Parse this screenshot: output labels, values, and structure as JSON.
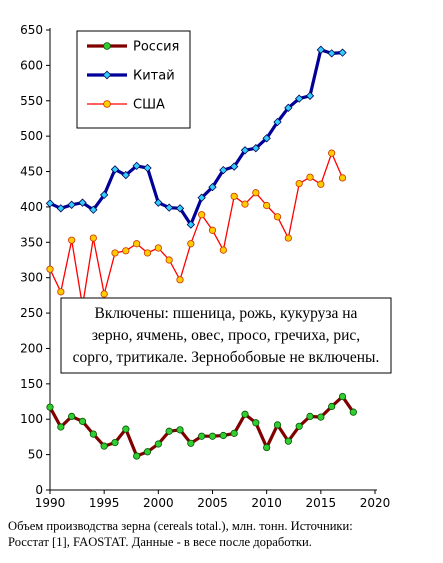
{
  "chart_data": {
    "type": "line",
    "title": "",
    "xlabel": "",
    "ylabel": "",
    "xlim": [
      1990,
      2020
    ],
    "ylim": [
      0,
      650
    ],
    "x_ticks": [
      1990,
      1995,
      2000,
      2005,
      2010,
      2015,
      2020
    ],
    "y_ticks": [
      0,
      50,
      100,
      150,
      200,
      250,
      300,
      350,
      400,
      450,
      500,
      550,
      600,
      650
    ],
    "grid": false,
    "legend_position": "top-left",
    "series": [
      {
        "name": "Россия",
        "color": "#800000",
        "marker_color": "#33cc33",
        "marker": "circle",
        "x": [
          1990,
          1991,
          1992,
          1993,
          1994,
          1995,
          1996,
          1997,
          1998,
          1999,
          2000,
          2001,
          2002,
          2003,
          2004,
          2005,
          2006,
          2007,
          2008,
          2009,
          2010,
          2011,
          2012,
          2013,
          2014,
          2015,
          2016,
          2017,
          2018
        ],
        "y": [
          117,
          89,
          104,
          97,
          79,
          62,
          67,
          86,
          48,
          54,
          65,
          83,
          85,
          66,
          76,
          76,
          77,
          80,
          107,
          95,
          60,
          92,
          69,
          90,
          104,
          103,
          118,
          132,
          110
        ]
      },
      {
        "name": "Китай",
        "color": "#000099",
        "marker_color": "#33ccff",
        "marker": "diamond",
        "x": [
          1990,
          1991,
          1992,
          1993,
          1994,
          1995,
          1996,
          1997,
          1998,
          1999,
          2000,
          2001,
          2002,
          2003,
          2004,
          2005,
          2006,
          2007,
          2008,
          2009,
          2010,
          2011,
          2012,
          2013,
          2014,
          2015,
          2016,
          2017
        ],
        "y": [
          405,
          398,
          403,
          406,
          396,
          417,
          453,
          445,
          458,
          455,
          406,
          399,
          398,
          375,
          413,
          428,
          452,
          457,
          480,
          483,
          497,
          520,
          540,
          553,
          557,
          622,
          617,
          618
        ]
      },
      {
        "name": "США",
        "color": "#ff0000",
        "marker_color": "#ffcc00",
        "marker": "circle",
        "x": [
          1990,
          1991,
          1992,
          1993,
          1994,
          1995,
          1996,
          1997,
          1998,
          1999,
          2000,
          2001,
          2002,
          2003,
          2004,
          2005,
          2006,
          2007,
          2008,
          2009,
          2010,
          2011,
          2012,
          2013,
          2014,
          2015,
          2016,
          2017
        ],
        "y": [
          312,
          280,
          353,
          260,
          356,
          277,
          335,
          338,
          348,
          335,
          342,
          325,
          297,
          348,
          389,
          367,
          339,
          415,
          404,
          420,
          402,
          386,
          356,
          433,
          442,
          432,
          476,
          441
        ]
      }
    ],
    "annotation": [
      "Включены: пшеница, рожь, кукуруза на",
      "зерно, ячмень, овес, просо, гречиха, рис,",
      "сорго, тритикале. Зернобобовые не включены."
    ]
  },
  "caption": [
    "Объем производства зерна (cereals total.), млн. тонн. Источники:",
    "Росстат [1], FAOSTAT. Данные - в весе после доработки."
  ]
}
